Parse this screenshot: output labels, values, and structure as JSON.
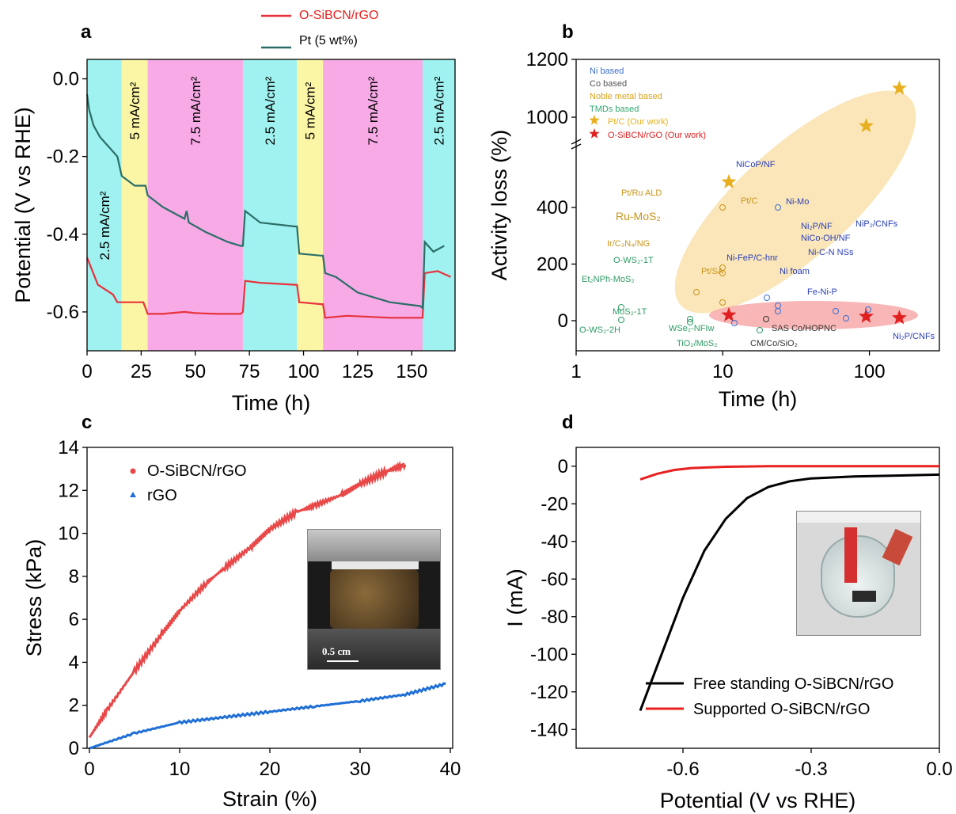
{
  "chart_data": [
    {
      "panel": "a",
      "type": "line",
      "xlabel": "Time (h)",
      "ylabel": "Potential (V vs RHE)",
      "xlim": [
        0,
        170
      ],
      "ylim": [
        -0.7,
        0.05
      ],
      "xticks": [
        0,
        25,
        50,
        75,
        100,
        125,
        150
      ],
      "yticks": [
        0.0,
        -0.2,
        -0.4,
        -0.6
      ],
      "ytick_labels": [
        "0.0",
        "-0.2",
        "-0.4",
        "-0.6"
      ],
      "legend": [
        "O-SiBCN/rGO",
        "Pt (5 wt%)"
      ],
      "bands": [
        {
          "from": 0,
          "to": 16,
          "label": "2.5 mA/cm²",
          "color": "#9ff2ef"
        },
        {
          "from": 16,
          "to": 28,
          "label": "5 mA/cm²",
          "color": "#fbf6a6"
        },
        {
          "from": 28,
          "to": 72,
          "label": "7.5 mA/cm²",
          "color": "#f7aae6"
        },
        {
          "from": 72,
          "to": 97,
          "label": "2.5 mA/cm²",
          "color": "#9ff2ef"
        },
        {
          "from": 97,
          "to": 109,
          "label": "5 mA/cm²",
          "color": "#fbf6a6"
        },
        {
          "from": 109,
          "to": 155,
          "label": "7.5 mA/cm²",
          "color": "#f7aae6"
        },
        {
          "from": 155,
          "to": 170,
          "label": "2.5 mA/cm²",
          "color": "#9ff2ef"
        }
      ],
      "series": [
        {
          "name": "O-SiBCN/rGO",
          "color": "#e8323c",
          "x": [
            0,
            5,
            12,
            14,
            16,
            26,
            27,
            28,
            35,
            45,
            50,
            60,
            71,
            72,
            73,
            80,
            96,
            97,
            98,
            108,
            109,
            110,
            120,
            140,
            155,
            156,
            162,
            168
          ],
          "y": [
            -0.46,
            -0.53,
            -0.555,
            -0.575,
            -0.575,
            -0.575,
            -0.59,
            -0.605,
            -0.605,
            -0.6,
            -0.603,
            -0.605,
            -0.605,
            -0.6,
            -0.52,
            -0.525,
            -0.53,
            -0.53,
            -0.575,
            -0.58,
            -0.58,
            -0.615,
            -0.61,
            -0.615,
            -0.615,
            -0.5,
            -0.495,
            -0.51
          ]
        },
        {
          "name": "Pt (5 wt%)",
          "color": "#2b6e68",
          "x": [
            0,
            1,
            3,
            6,
            10,
            14,
            16,
            22,
            27,
            28,
            35,
            45,
            46,
            47,
            55,
            65,
            71,
            72,
            73,
            80,
            96,
            97,
            98,
            108,
            109,
            110,
            115,
            125,
            140,
            154,
            155,
            156,
            160,
            165
          ],
          "y": [
            -0.04,
            -0.08,
            -0.12,
            -0.15,
            -0.175,
            -0.2,
            -0.25,
            -0.275,
            -0.275,
            -0.3,
            -0.33,
            -0.36,
            -0.34,
            -0.37,
            -0.395,
            -0.42,
            -0.43,
            -0.43,
            -0.34,
            -0.37,
            -0.38,
            -0.38,
            -0.45,
            -0.455,
            -0.455,
            -0.5,
            -0.51,
            -0.55,
            -0.575,
            -0.585,
            -0.59,
            -0.42,
            -0.445,
            -0.43
          ]
        }
      ]
    },
    {
      "panel": "b",
      "type": "scatter",
      "xlabel": "Time (h)",
      "ylabel": "Activity loss (%)",
      "xscale": "log",
      "xlim": [
        1,
        300
      ],
      "xticks": [
        1,
        10,
        100
      ],
      "xtick_labels": [
        "1",
        "10",
        "100"
      ],
      "yticks": [
        0,
        200,
        400,
        1000,
        1200
      ],
      "y_axis_break": true,
      "legend": [
        "Ni based",
        "Co based",
        "Noble metal based",
        "TMDs based",
        "Pt/C (Our work)",
        "O-SiBCN/rGO (Our work)"
      ],
      "legend_colors": [
        "#3a6fd0",
        "#555555",
        "#d9a21c",
        "#2ea86d",
        "#e8b020",
        "#e02020"
      ],
      "stars_ptc": [
        {
          "x": 11,
          "y": 490
        },
        {
          "x": 95,
          "y": 970
        },
        {
          "x": 160,
          "y": 1100
        }
      ],
      "stars_osibcn": [
        {
          "x": 11,
          "y": 20
        },
        {
          "x": 95,
          "y": 15
        },
        {
          "x": 160,
          "y": 10
        }
      ],
      "labels": [
        {
          "text": "NiCoP/NF",
          "x": 22,
          "y": 400,
          "group": "Ni"
        },
        {
          "text": "Ni-Mo",
          "x": 22,
          "y": 80,
          "group": "Ni"
        },
        {
          "text": "Ni₂P/NF",
          "x": 23,
          "y": 60,
          "group": "Ni"
        },
        {
          "text": "NiCo-OH/NF",
          "x": 23,
          "y": 40,
          "group": "Ni"
        },
        {
          "text": "Ni-C-N NSs",
          "x": 24,
          "y": 35,
          "group": "Ni"
        },
        {
          "text": "Ni-FeP/C-hnr",
          "x": 12,
          "y": -5,
          "group": "Ni"
        },
        {
          "text": "Ni foam",
          "x": 24,
          "y": 50,
          "group": "Ni"
        },
        {
          "text": "Fe-Ni-P",
          "x": 70,
          "y": 5,
          "group": "Ni"
        },
        {
          "text": "NiP₂/CNFs",
          "x": 100,
          "y": 40,
          "group": "Ni"
        },
        {
          "text": "Ni₂P/CNFs",
          "x": 60,
          "y": 40,
          "group": "Ni"
        },
        {
          "text": "SAS Co/HOPNC",
          "x": 18,
          "y": 5,
          "group": "Co"
        },
        {
          "text": "CM/Co/SiO₂",
          "x": 11,
          "y": 0,
          "group": "Co"
        },
        {
          "text": "Pt/Ru ALD",
          "x": 8,
          "y": 120,
          "group": "Noble"
        },
        {
          "text": "Pt/C",
          "x": 8,
          "y": 400,
          "group": "Noble"
        },
        {
          "text": "Ru-MoS₂",
          "x": 7,
          "y": 100,
          "group": "Noble"
        },
        {
          "text": "Ir/C₃N₄/NG",
          "x": 8,
          "y": 65,
          "group": "Noble"
        },
        {
          "text": "Pt/SA",
          "x": 8,
          "y": 100,
          "group": "Noble"
        },
        {
          "text": "O-WS₂-1T",
          "x": 6,
          "y": 20,
          "group": "TMDs"
        },
        {
          "text": "Et₂NPh-MoS₂",
          "x": 2,
          "y": 45,
          "group": "TMDs"
        },
        {
          "text": "MoS₂-1T",
          "x": 2,
          "y": 0,
          "group": "TMDs"
        },
        {
          "text": "O-WS₂-2H",
          "x": 2,
          "y": -20,
          "group": "TMDs"
        },
        {
          "text": "WSe₂-NFIw",
          "x": 6,
          "y": 5,
          "group": "TMDs"
        },
        {
          "text": "TiO₂/MoS₂",
          "x": 20,
          "y": -30,
          "group": "TMDs"
        }
      ]
    },
    {
      "panel": "c",
      "type": "scatter",
      "xlabel": "Strain (%)",
      "ylabel": "Stress (kPa)",
      "xlim": [
        0,
        40
      ],
      "ylim": [
        0,
        14
      ],
      "xticks": [
        0,
        10,
        20,
        30,
        40
      ],
      "yticks": [
        0,
        2,
        4,
        6,
        8,
        10,
        12,
        14
      ],
      "legend": [
        "O-SiBCN/rGO",
        "rGO"
      ],
      "inset_label": "0.5 cm",
      "series": [
        {
          "name": "O-SiBCN/rGO",
          "color": "#e84848",
          "x": [
            0,
            2,
            5,
            8,
            10,
            13,
            15,
            18,
            20,
            23,
            25,
            28,
            30,
            33,
            35
          ],
          "y": [
            0.5,
            1.8,
            3.6,
            5.3,
            6.4,
            7.7,
            8.4,
            9.4,
            10.2,
            11.0,
            11.3,
            11.8,
            12.3,
            12.9,
            13.2
          ]
        },
        {
          "name": "rGO",
          "color": "#1f6fd6",
          "x": [
            0,
            5,
            10,
            15,
            20,
            25,
            30,
            35,
            39.5
          ],
          "y": [
            0,
            0.7,
            1.2,
            1.45,
            1.7,
            1.95,
            2.2,
            2.5,
            3.0
          ]
        }
      ]
    },
    {
      "panel": "d",
      "type": "line",
      "xlabel": "Potential (V vs RHE)",
      "ylabel": "I (mA)",
      "xlim": [
        -0.85,
        0.0
      ],
      "ylim": [
        -150,
        10
      ],
      "xticks": [
        -0.6,
        -0.3,
        0.0
      ],
      "xtick_labels": [
        "-0.6",
        "-0.3",
        "0.0"
      ],
      "yticks": [
        0,
        -20,
        -40,
        -60,
        -80,
        -100,
        -120,
        -140
      ],
      "legend": [
        "Free standing O-SiBCN/rGO",
        "Supported O-SiBCN/rGO"
      ],
      "series": [
        {
          "name": "Free standing O-SiBCN/rGO",
          "color": "#000000",
          "x": [
            -0.7,
            -0.65,
            -0.6,
            -0.55,
            -0.5,
            -0.45,
            -0.4,
            -0.35,
            -0.3,
            -0.2,
            -0.1,
            0.0
          ],
          "y": [
            -130,
            -100,
            -70,
            -45,
            -28,
            -17,
            -11,
            -8,
            -6.5,
            -5.5,
            -5,
            -4.5
          ]
        },
        {
          "name": "Supported O-SiBCN/rGO",
          "color": "#e82020",
          "x": [
            -0.7,
            -0.66,
            -0.62,
            -0.58,
            -0.5,
            -0.4,
            -0.3,
            0.0
          ],
          "y": [
            -7,
            -4,
            -2,
            -1,
            -0.3,
            0,
            0,
            0
          ]
        }
      ]
    }
  ],
  "panel_letters": [
    "a",
    "b",
    "c",
    "d"
  ]
}
